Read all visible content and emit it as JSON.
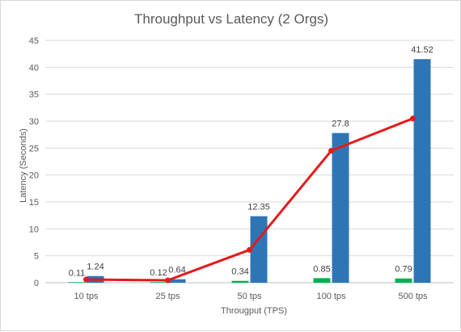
{
  "chart_data": {
    "type": "bar",
    "title": "Throughput vs Latency (2 Orgs)",
    "xlabel": "Througput (TPS)",
    "ylabel": "Latency (Seconds)",
    "ylim": [
      0,
      45
    ],
    "yticks": [
      0,
      5,
      10,
      15,
      20,
      25,
      30,
      35,
      40,
      45
    ],
    "categories": [
      "10 tps",
      "25 tps",
      "50 tps",
      "100 tps",
      "500 tps"
    ],
    "grid": true,
    "legend": "none",
    "series": [
      {
        "type": "bar",
        "color": "#00b050",
        "values": [
          0.11,
          0.12,
          0.34,
          0.85,
          0.79
        ]
      },
      {
        "type": "bar",
        "color": "#2e75b6",
        "values": [
          1.24,
          0.64,
          12.35,
          27.8,
          41.52
        ]
      },
      {
        "type": "line",
        "color": "#e31a1c",
        "values": [
          0.6,
          0.45,
          6.1,
          24.5,
          30.5
        ]
      }
    ]
  }
}
